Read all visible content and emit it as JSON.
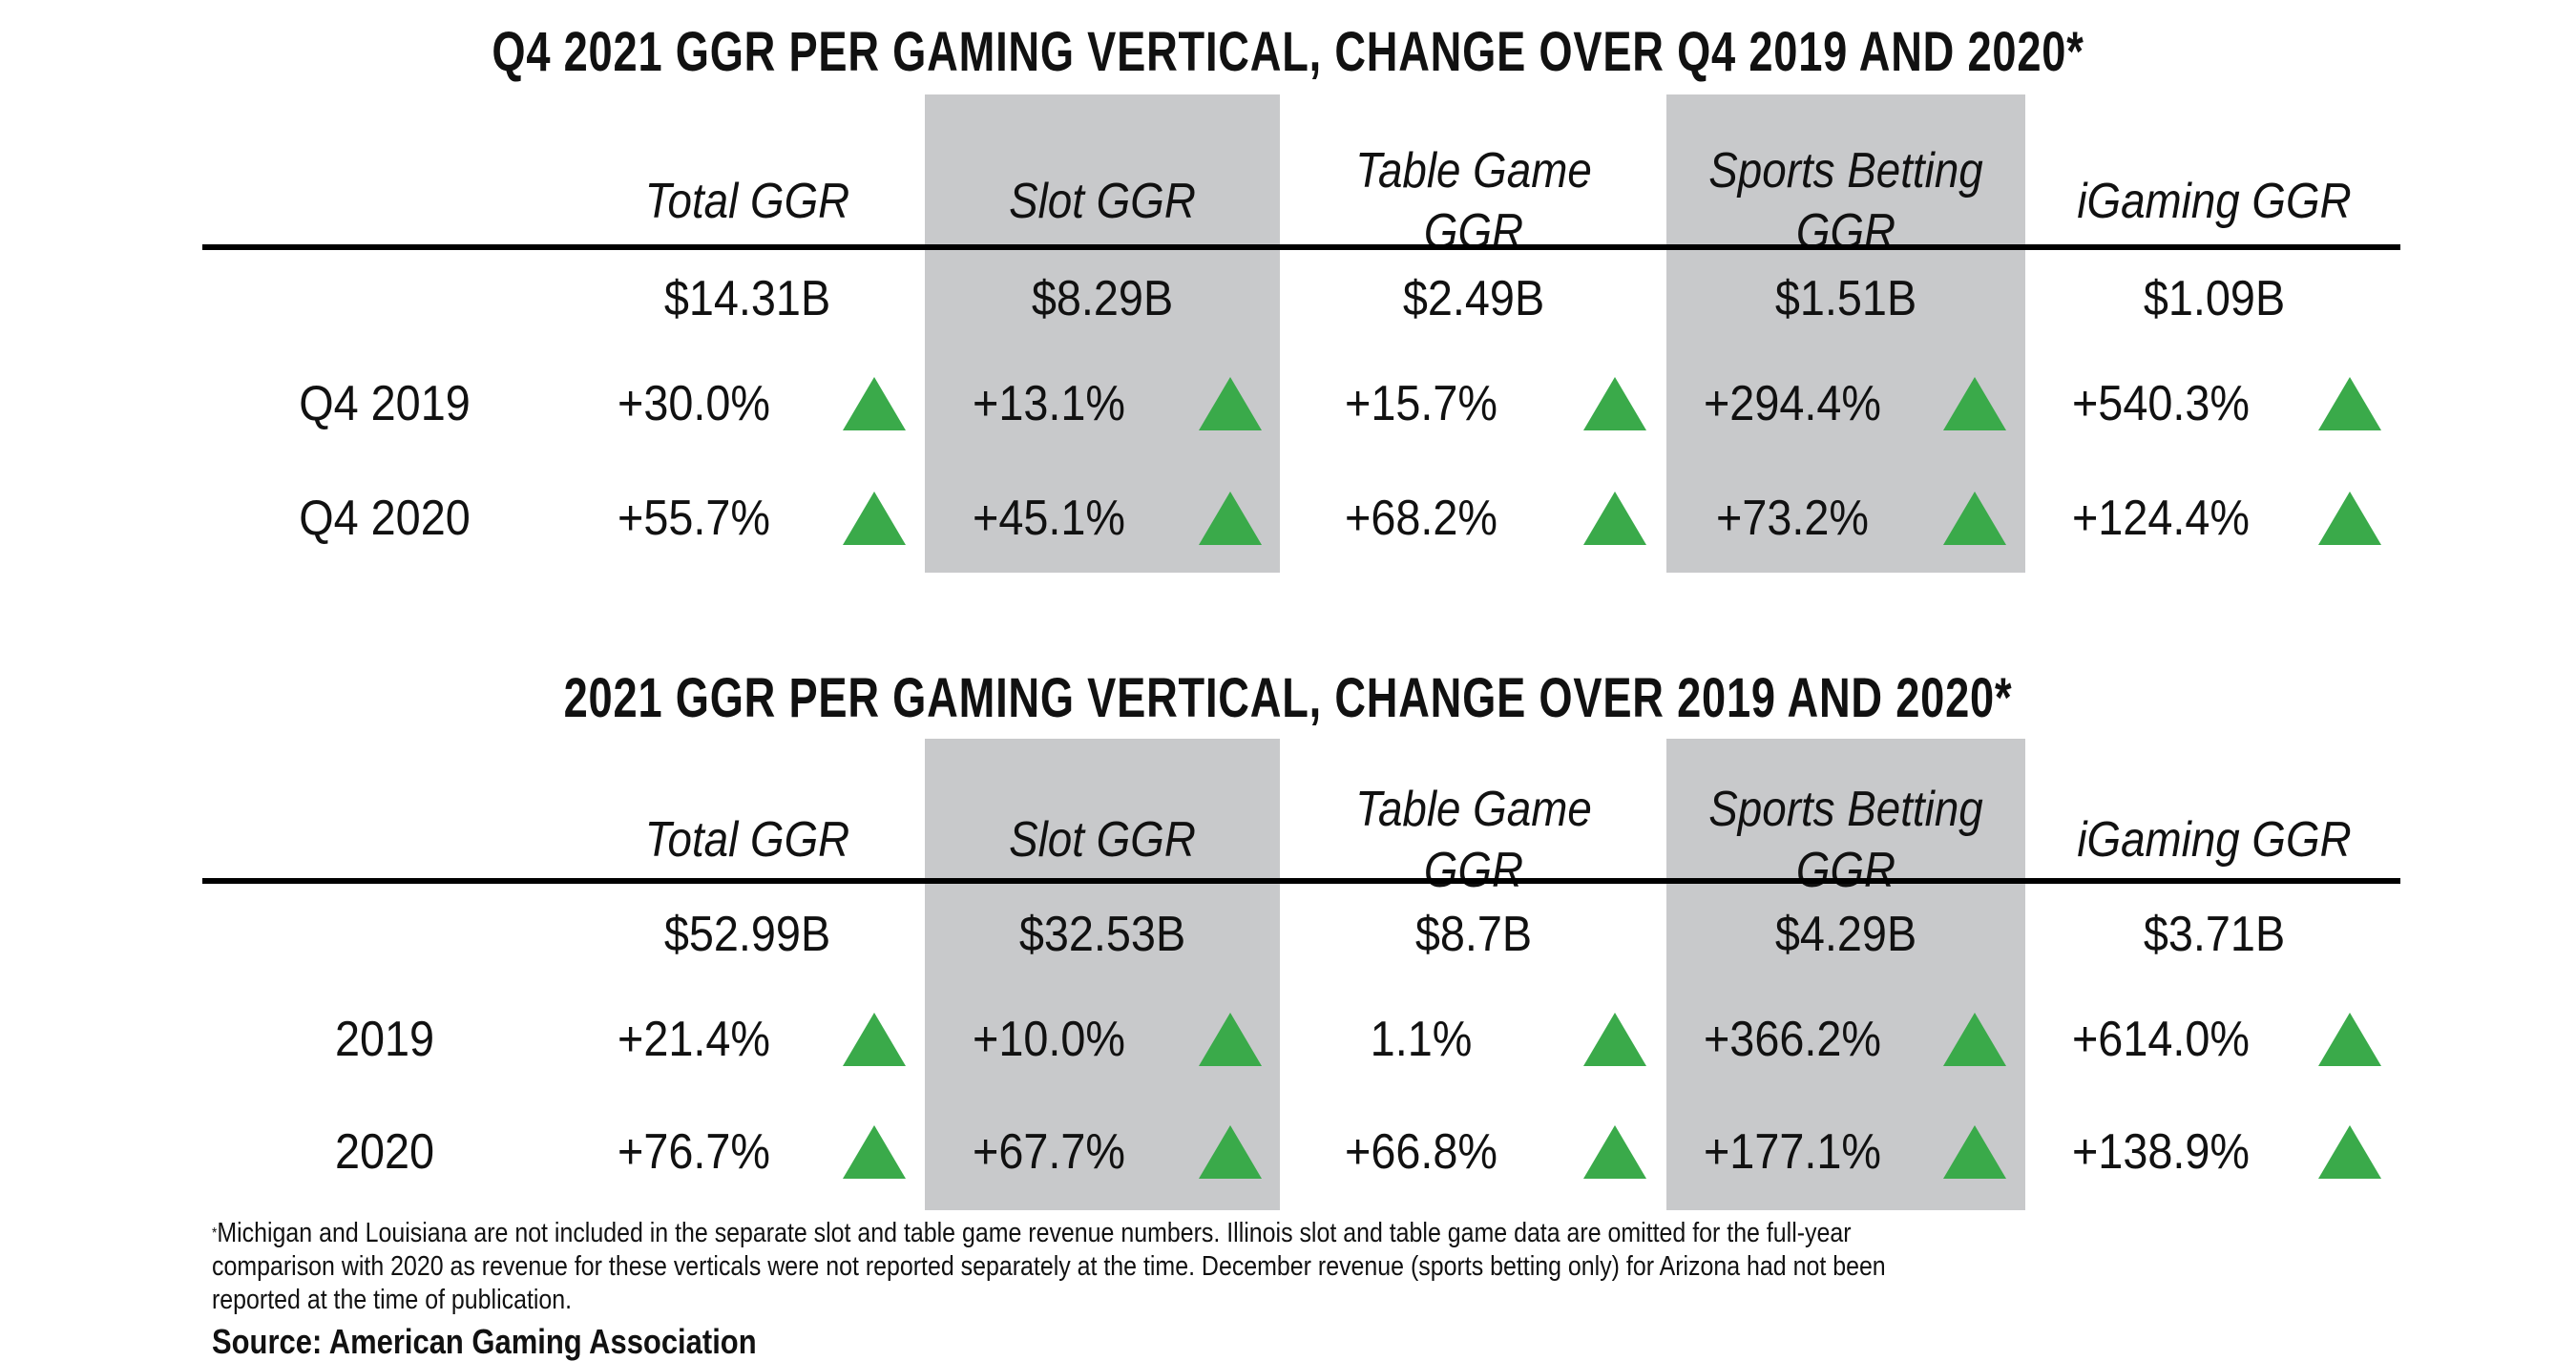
{
  "colors": {
    "band": "#c8c9cb",
    "up_arrow": "#3aaa4a",
    "rule": "#000000"
  },
  "columns": [
    "Total GGR",
    "Slot GGR",
    "Table Game GGR",
    "Sports Betting GGR",
    "iGaming GGR"
  ],
  "header_lines": [
    [
      "Total GGR"
    ],
    [
      "Slot GGR"
    ],
    [
      "Table Game",
      "GGR"
    ],
    [
      "Sports Betting",
      "GGR"
    ],
    [
      "iGaming GGR"
    ]
  ],
  "tables": [
    {
      "title": "Q4 2021 GGR PER GAMING VERTICAL, CHANGE OVER Q4 2019 AND 2020*",
      "totals": [
        "$14.31B",
        "$8.29B",
        "$2.49B",
        "$1.51B",
        "$1.09B"
      ],
      "rows": [
        {
          "label": "Q4 2019",
          "values": [
            "+30.0%",
            "+13.1%",
            "+15.7%",
            "+294.4%",
            "+540.3%"
          ],
          "trend": [
            "up-arrow-icon",
            "up-arrow-icon",
            "up-arrow-icon",
            "up-arrow-icon",
            "up-arrow-icon"
          ]
        },
        {
          "label": "Q4 2020",
          "values": [
            "+55.7%",
            "+45.1%",
            "+68.2%",
            "+73.2%",
            "+124.4%"
          ],
          "trend": [
            "up-arrow-icon",
            "up-arrow-icon",
            "up-arrow-icon",
            "up-arrow-icon",
            "up-arrow-icon"
          ]
        }
      ]
    },
    {
      "title": "2021 GGR PER GAMING VERTICAL, CHANGE OVER 2019 AND 2020*",
      "totals": [
        "$52.99B",
        "$32.53B",
        "$8.7B",
        "$4.29B",
        "$3.71B"
      ],
      "rows": [
        {
          "label": "2019",
          "values": [
            "+21.4%",
            "+10.0%",
            "1.1%",
            "+366.2%",
            "+614.0%"
          ],
          "trend": [
            "up-arrow-icon",
            "up-arrow-icon",
            "up-arrow-icon",
            "up-arrow-icon",
            "up-arrow-icon"
          ]
        },
        {
          "label": "2020",
          "values": [
            "+76.7%",
            "+67.7%",
            "+66.8%",
            "+177.1%",
            "+138.9%"
          ],
          "trend": [
            "up-arrow-icon",
            "up-arrow-icon",
            "up-arrow-icon",
            "up-arrow-icon",
            "up-arrow-icon"
          ]
        }
      ]
    }
  ],
  "footnote": {
    "marker": "*",
    "lines": [
      "Michigan and Louisiana are not included in the separate slot and table game revenue numbers. Illinois slot and table game data are omitted for the full-year",
      "comparison with 2020 as revenue for these verticals were not reported separately at the time. December revenue (sports betting only) for Arizona had not been",
      "reported at the time of publication."
    ]
  },
  "source": "Source: American Gaming Association"
}
